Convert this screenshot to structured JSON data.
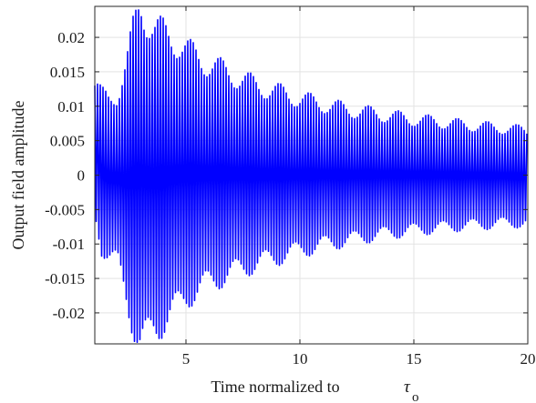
{
  "chart_data": {
    "type": "line",
    "title": "",
    "xlabel": "Time normalized to",
    "xlabel_symbol": "τ",
    "xlabel_subscript": "o",
    "ylabel": "Output field amplitude",
    "xlim": [
      1,
      20
    ],
    "ylim": [
      -0.0245,
      0.0245
    ],
    "xticks": [
      5,
      10,
      15,
      20
    ],
    "yticks": [
      0.02,
      0.015,
      0.01,
      0.005,
      0,
      -0.005,
      -0.01,
      -0.015,
      -0.02
    ],
    "ytick_labels": [
      "0.02",
      "0.015",
      "0.01",
      "0.005",
      "0",
      "-0.005",
      "-0.01",
      "-0.015",
      "-0.02"
    ],
    "grid": true,
    "series_color": "#0000ff",
    "series": [
      {
        "envelope_upper": {
          "x": [
            1.0,
            1.3,
            1.6,
            2.0,
            2.4,
            2.7,
            3.0,
            3.3,
            3.6,
            4.0,
            4.5,
            5.0,
            6.0,
            7.0,
            8.0,
            9.0,
            10.0,
            11.0,
            12.0,
            13.0,
            14.0,
            15.0,
            16.0,
            17.0,
            18.0,
            19.0,
            20.0
          ],
          "y": [
            0.013,
            0.0115,
            0.011,
            0.0115,
            0.016,
            0.021,
            0.0245,
            0.0225,
            0.021,
            0.0205,
            0.0195,
            0.018,
            0.016,
            0.0145,
            0.013,
            0.012,
            0.011,
            0.0102,
            0.0095,
            0.009,
            0.0085,
            0.008,
            0.0077,
            0.0073,
            0.007,
            0.0067,
            0.0064
          ]
        },
        "envelope_lower": {
          "x": [
            1.0,
            1.3,
            1.6,
            2.0,
            2.4,
            2.7,
            3.0,
            3.3,
            3.6,
            4.0,
            4.5,
            5.0,
            6.0,
            7.0,
            8.0,
            9.0,
            10.0,
            11.0,
            12.0,
            13.0,
            14.0,
            15.0,
            16.0,
            17.0,
            18.0,
            19.0,
            20.0
          ],
          "y": [
            -0.0055,
            -0.0105,
            -0.0115,
            -0.0125,
            -0.0175,
            -0.0215,
            -0.0245,
            -0.0235,
            -0.022,
            -0.021,
            -0.0195,
            -0.0175,
            -0.0155,
            -0.014,
            -0.0128,
            -0.0118,
            -0.0108,
            -0.01,
            -0.0094,
            -0.0088,
            -0.0083,
            -0.0079,
            -0.0076,
            -0.0073,
            -0.0071,
            -0.0069,
            -0.0068
          ]
        },
        "ripple_period": 1.3,
        "oscillation_period": 0.12
      }
    ]
  }
}
